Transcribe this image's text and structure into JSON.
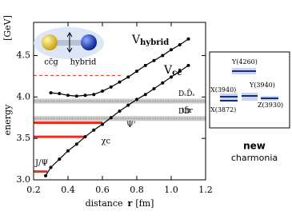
{
  "chart_data": {
    "type": "line",
    "xlabel": "distance",
    "xlabel_symbol": "r",
    "xlabel_unit": "[fm]",
    "ylabel": "energy",
    "ylabel_unit": "[GeV]",
    "xlim": [
      0.2,
      1.2
    ],
    "xticks": [
      0.2,
      0.4,
      0.6,
      0.8,
      {
        "value": 1,
        "label": "1.0"
      },
      1.2
    ],
    "ylim": [
      3.0,
      4.9
    ],
    "yticks": [
      {
        "value": 3,
        "label": "3.0"
      },
      3.5,
      {
        "value": 4,
        "label": "4.0"
      },
      4.5
    ],
    "series": [
      {
        "label": "V",
        "label_sub": "hybrid",
        "color": "#000000",
        "x": [
          0.3,
          0.35,
          0.4,
          0.45,
          0.5,
          0.55,
          0.6,
          0.65,
          0.7,
          0.75,
          0.8,
          0.85,
          0.9,
          0.95,
          1.0,
          1.05,
          1.1
        ],
        "values": [
          4.05,
          4.04,
          4.02,
          4.01,
          4.02,
          4.03,
          4.07,
          4.12,
          4.18,
          4.24,
          4.31,
          4.38,
          4.44,
          4.5,
          4.57,
          4.63,
          4.7
        ]
      },
      {
        "label": "V",
        "label_sub": "cc̄",
        "color": "#000000",
        "x": [
          0.27,
          0.3,
          0.35,
          0.4,
          0.45,
          0.5,
          0.55,
          0.6,
          0.65,
          0.7,
          0.75,
          0.8,
          0.85,
          0.9,
          0.95,
          1.0,
          1.05,
          1.1
        ],
        "values": [
          3.05,
          3.15,
          3.25,
          3.35,
          3.43,
          3.52,
          3.6,
          3.67,
          3.75,
          3.83,
          3.9,
          3.97,
          4.03,
          4.1,
          4.17,
          4.24,
          4.31,
          4.38
        ]
      }
    ],
    "levels": [
      {
        "label": "J/Ψ",
        "value": 3.1,
        "xmax": 0.28,
        "style": "solid",
        "color": "#e8301c"
      },
      {
        "label": "χc",
        "value": 3.52,
        "xmax": 0.5,
        "style": "solid",
        "color": "#e8301c"
      },
      {
        "label": "Ψ'",
        "value": 3.69,
        "xmax": 0.6,
        "style": "solid",
        "color": "#e8301c"
      },
      {
        "value": 4.26,
        "xmax": 0.72,
        "style": "dashed",
        "color": "#e8301c"
      }
    ],
    "thresholds": [
      {
        "label": "DₛD̄ₛ",
        "value": 3.95
      },
      {
        "label": "DD̄",
        "value": 3.74
      }
    ],
    "threshold_note": "thr",
    "inset": {
      "left": "cc̄g",
      "right": "hybrid"
    }
  },
  "panel": {
    "states": [
      "Y(4260)",
      "X(3940)",
      "Y(3940)",
      "X(3872)",
      "Z(3930)"
    ],
    "title": "new",
    "subtitle": "charmonia"
  }
}
